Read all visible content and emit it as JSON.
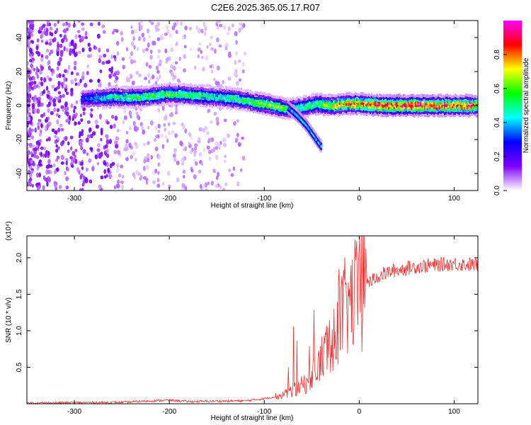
{
  "title": "C2E6.2025.365.05.17.R07",
  "chart_data": [
    {
      "type": "heatmap",
      "xlabel": "Height of straight line (km)",
      "ylabel": "Frequency (Hz)",
      "xlim": [
        -350,
        125
      ],
      "ylim": [
        -50,
        50
      ],
      "xticks": [
        -300,
        -200,
        -100,
        0,
        100
      ],
      "yticks": [
        -40,
        -20,
        0,
        20,
        40
      ],
      "colorbar": {
        "label": "Normalized spectral amplitude",
        "range": [
          0,
          1
        ],
        "ticks": [
          "0.0",
          "0.2",
          "0.4",
          "0.6",
          "0.8"
        ],
        "tick_values": [
          0,
          0.2,
          0.4,
          0.6,
          0.8
        ],
        "colormap": [
          "#ffffff",
          "#8000ff",
          "#0000ff",
          "#00ffff",
          "#00ff00",
          "#ffff00",
          "#ff0000",
          "#ff00ff"
        ]
      },
      "ridge": {
        "x": [
          -290,
          -260,
          -230,
          -200,
          -170,
          -150,
          -130,
          -110,
          -90,
          -75,
          -60,
          -45,
          -30,
          -15,
          0,
          30,
          60,
          90,
          125
        ],
        "y": [
          4,
          5,
          5,
          7,
          6,
          5,
          4,
          2,
          0,
          -2,
          -1,
          1,
          0,
          1,
          1,
          0,
          0,
          0,
          0
        ],
        "strength": [
          0.3,
          0.5,
          0.55,
          0.6,
          0.55,
          0.5,
          0.55,
          0.6,
          0.65,
          0.6,
          0.5,
          0.6,
          0.7,
          0.8,
          0.85,
          0.95,
          0.95,
          0.9,
          0.85
        ]
      },
      "branch": {
        "x": [
          -75,
          -65,
          -55,
          -50,
          -45,
          -40
        ],
        "y": [
          -1,
          -6,
          -12,
          -16,
          -20,
          -24
        ]
      }
    },
    {
      "type": "line",
      "xlabel": "Height of straight line (km)",
      "ylabel": "SNR (10 * v/v)",
      "multiplier": "(x10⁴)",
      "xlim": [
        -350,
        125
      ],
      "ylim": [
        0,
        2.3
      ],
      "xticks": [
        -300,
        -200,
        -100,
        0,
        100
      ],
      "yticks": [
        0.5,
        1.0,
        1.5,
        2.0
      ],
      "ytick_labels": [
        "0.5",
        "1.0",
        "1.5",
        "2.0"
      ],
      "color": "#ee3030",
      "trend": {
        "x": [
          -350,
          -250,
          -200,
          -180,
          -120,
          -100,
          -80,
          -60,
          -45,
          -35,
          -25,
          -15,
          -5,
          5,
          20,
          35,
          60,
          100,
          125
        ],
        "y": [
          0.01,
          0.02,
          0.05,
          0.03,
          0.04,
          0.07,
          0.12,
          0.25,
          0.45,
          0.75,
          1.05,
          1.3,
          1.45,
          1.6,
          1.75,
          1.82,
          1.88,
          1.92,
          1.9
        ]
      }
    }
  ]
}
